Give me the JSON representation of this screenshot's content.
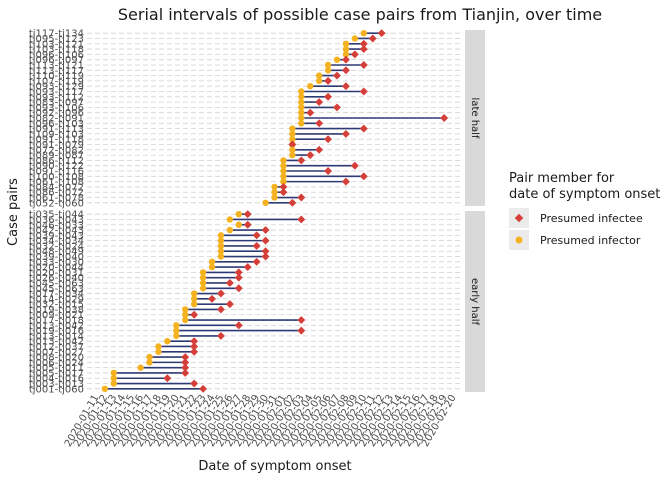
{
  "chart_data": {
    "type": "dumbbell",
    "title": "Serial intervals of possible case pairs from Tianjin, over time",
    "xlabel": "Date of symptom onset",
    "ylabel": "Case pairs",
    "x_ticks": [
      "2020-01-11",
      "2020-01-12",
      "2020-01-13",
      "2020-01-14",
      "2020-01-15",
      "2020-01-16",
      "2020-01-17",
      "2020-01-18",
      "2020-01-19",
      "2020-01-20",
      "2020-01-21",
      "2020-01-22",
      "2020-01-23",
      "2020-01-24",
      "2020-01-25",
      "2020-01-26",
      "2020-01-27",
      "2020-01-28",
      "2020-01-29",
      "2020-01-30",
      "2020-01-31",
      "2020-02-01",
      "2020-02-02",
      "2020-02-03",
      "2020-02-04",
      "2020-02-05",
      "2020-02-06",
      "2020-02-07",
      "2020-02-08",
      "2020-02-09",
      "2020-02-10",
      "2020-02-11",
      "2020-02-12",
      "2020-02-13",
      "2020-02-14",
      "2020-02-15",
      "2020-02-16",
      "2020-02-17",
      "2020-02-18",
      "2020-02-19",
      "2020-02-20"
    ],
    "x_range": [
      "2020-01-11",
      "2020-02-20"
    ],
    "legend": {
      "title_line1": "Pair member for",
      "title_line2": "date of symptom onset",
      "entries": [
        {
          "label": "Presumed infectee",
          "color": "#d43f3a",
          "shape": "diamond"
        },
        {
          "label": "Presumed infector",
          "color": "#f5b220",
          "shape": "circle"
        }
      ]
    },
    "colors": {
      "segment": "#2e3a75",
      "infectee": "#d43f3a",
      "infector": "#f5b220",
      "strip": "#d9d9d9"
    },
    "panels": [
      {
        "name": "late half",
        "pairs": [
          {
            "label": "tj117-tj134",
            "infector": "2020-02-10",
            "infectee": "2020-02-12"
          },
          {
            "label": "tj095-tj123",
            "infector": "2020-02-09",
            "infectee": "2020-02-11"
          },
          {
            "label": "tj103-tj121",
            "infector": "2020-02-08",
            "infectee": "2020-02-10"
          },
          {
            "label": "tj103-tj118",
            "infector": "2020-02-08",
            "infectee": "2020-02-10"
          },
          {
            "label": "tj096-tj106",
            "infector": "2020-02-08",
            "infectee": "2020-02-09"
          },
          {
            "label": "tj096-tj097",
            "infector": "2020-02-07",
            "infectee": "2020-02-08"
          },
          {
            "label": "tj113-tj121",
            "infector": "2020-02-06",
            "infectee": "2020-02-10"
          },
          {
            "label": "tj113-tj117",
            "infector": "2020-02-06",
            "infectee": "2020-02-08"
          },
          {
            "label": "tj110-tj119",
            "infector": "2020-02-05",
            "infectee": "2020-02-07"
          },
          {
            "label": "tj107-tj119",
            "infector": "2020-02-05",
            "infectee": "2020-02-06"
          },
          {
            "label": "tj093-tj129",
            "infector": "2020-02-04",
            "infectee": "2020-02-08"
          },
          {
            "label": "tj093-tj117",
            "infector": "2020-02-03",
            "infectee": "2020-02-10"
          },
          {
            "label": "tj093-tj112",
            "infector": "2020-02-03",
            "infectee": "2020-02-06"
          },
          {
            "label": "tj083-tj097",
            "infector": "2020-02-03",
            "infectee": "2020-02-05"
          },
          {
            "label": "tj093-tj106",
            "infector": "2020-02-03",
            "infectee": "2020-02-07"
          },
          {
            "label": "tj092-tj096",
            "infector": "2020-02-03",
            "infectee": "2020-02-04"
          },
          {
            "label": "tj082-tj091",
            "infector": "2020-02-03",
            "infectee": "2020-02-19"
          },
          {
            "label": "tj096-tj103",
            "infector": "2020-02-03",
            "infectee": "2020-02-05"
          },
          {
            "label": "tj091-tj113",
            "infector": "2020-02-02",
            "infectee": "2020-02-10"
          },
          {
            "label": "tj109-tj103",
            "infector": "2020-02-02",
            "infectee": "2020-02-08"
          },
          {
            "label": "tj091-tj118",
            "infector": "2020-02-02",
            "infectee": "2020-02-06"
          },
          {
            "label": "tj091-tj079",
            "infector": "2020-02-02",
            "infectee": "2020-02-02"
          },
          {
            "label": "tj072-tj082",
            "infector": "2020-02-02",
            "infectee": "2020-02-05"
          },
          {
            "label": "tj089-tj087",
            "infector": "2020-02-02",
            "infectee": "2020-02-04"
          },
          {
            "label": "tj086-tj112",
            "infector": "2020-02-01",
            "infectee": "2020-02-03"
          },
          {
            "label": "tj090-tj122",
            "infector": "2020-02-01",
            "infectee": "2020-02-09"
          },
          {
            "label": "tj091-tj116",
            "infector": "2020-02-01",
            "infectee": "2020-02-06"
          },
          {
            "label": "tj100-tj108",
            "infector": "2020-02-01",
            "infectee": "2020-02-10"
          },
          {
            "label": "tj061-tj108",
            "infector": "2020-02-01",
            "infectee": "2020-02-08"
          },
          {
            "label": "tj084-tj072",
            "infector": "2020-01-31",
            "infectee": "2020-02-01"
          },
          {
            "label": "tj086-tj072",
            "infector": "2020-01-31",
            "infectee": "2020-02-01"
          },
          {
            "label": "tj061-tj078",
            "infector": "2020-01-31",
            "infectee": "2020-02-03"
          },
          {
            "label": "tj052-tj060",
            "infector": "2020-01-30",
            "infectee": "2020-02-02"
          }
        ]
      },
      {
        "name": "early half",
        "pairs": [
          {
            "label": "tj035-tj044",
            "infector": "2020-01-27",
            "infectee": "2020-01-28"
          },
          {
            "label": "tj036-tj043",
            "infector": "2020-01-26",
            "infectee": "2020-02-03"
          },
          {
            "label": "tj046-tj033",
            "infector": "2020-01-27",
            "infectee": "2020-01-28"
          },
          {
            "label": "tj042-tj043",
            "infector": "2020-01-26",
            "infectee": "2020-01-30"
          },
          {
            "label": "tj039-tj043",
            "infector": "2020-01-25",
            "infectee": "2020-01-29"
          },
          {
            "label": "tj034-tj034",
            "infector": "2020-01-25",
            "infectee": "2020-01-30"
          },
          {
            "label": "tj032-tj024",
            "infector": "2020-01-25",
            "infectee": "2020-01-29"
          },
          {
            "label": "tj048-tj049",
            "infector": "2020-01-25",
            "infectee": "2020-01-30"
          },
          {
            "label": "tj039-tj040",
            "infector": "2020-01-25",
            "infectee": "2020-01-30"
          },
          {
            "label": "tj033-tj030",
            "infector": "2020-01-24",
            "infectee": "2020-01-29"
          },
          {
            "label": "tj020-tj044",
            "infector": "2020-01-24",
            "infectee": "2020-01-28"
          },
          {
            "label": "tj020-tj031",
            "infector": "2020-01-23",
            "infectee": "2020-01-27"
          },
          {
            "label": "tj026-tj040",
            "infector": "2020-01-23",
            "infectee": "2020-01-27"
          },
          {
            "label": "tj045-tj063",
            "infector": "2020-01-23",
            "infectee": "2020-01-26"
          },
          {
            "label": "tj045-tj063",
            "infector": "2020-01-23",
            "infectee": "2020-01-27"
          },
          {
            "label": "tj017-tj034",
            "infector": "2020-01-22",
            "infectee": "2020-01-25"
          },
          {
            "label": "tj014-tj029",
            "infector": "2020-01-22",
            "infectee": "2020-01-24"
          },
          {
            "label": "tj032-tj015",
            "infector": "2020-01-22",
            "infectee": "2020-01-26"
          },
          {
            "label": "tj019-tj038",
            "infector": "2020-01-21",
            "infectee": "2020-01-25"
          },
          {
            "label": "tj009-tj021",
            "infector": "2020-01-21",
            "infectee": "2020-01-22"
          },
          {
            "label": "tj017-tj018",
            "infector": "2020-01-21",
            "infectee": "2020-02-03"
          },
          {
            "label": "tj013-tj042",
            "infector": "2020-01-20",
            "infectee": "2020-01-27"
          },
          {
            "label": "tj019-tj016",
            "infector": "2020-01-20",
            "infectee": "2020-02-03"
          },
          {
            "label": "tj013-tj014",
            "infector": "2020-01-20",
            "infectee": "2020-01-25"
          },
          {
            "label": "tj013-tj042",
            "infector": "2020-01-19",
            "infectee": "2020-01-22"
          },
          {
            "label": "tj012-tj037",
            "infector": "2020-01-18",
            "infectee": "2020-01-22"
          },
          {
            "label": "tj007-tj027",
            "infector": "2020-01-18",
            "infectee": "2020-01-22"
          },
          {
            "label": "tj008-tj020",
            "infector": "2020-01-17",
            "infectee": "2020-01-21"
          },
          {
            "label": "tj006-tj024",
            "infector": "2020-01-17",
            "infectee": "2020-01-21"
          },
          {
            "label": "tj005-tj011",
            "infector": "2020-01-16",
            "infectee": "2020-01-21"
          },
          {
            "label": "tj005-tj017",
            "infector": "2020-01-13",
            "infectee": "2020-01-21"
          },
          {
            "label": "tj004-tj016",
            "infector": "2020-01-13",
            "infectee": "2020-01-19"
          },
          {
            "label": "tj003-tj013",
            "infector": "2020-01-13",
            "infectee": "2020-01-22"
          },
          {
            "label": "tj001-tj060",
            "infector": "2020-01-12",
            "infectee": "2020-01-23"
          }
        ]
      }
    ]
  }
}
